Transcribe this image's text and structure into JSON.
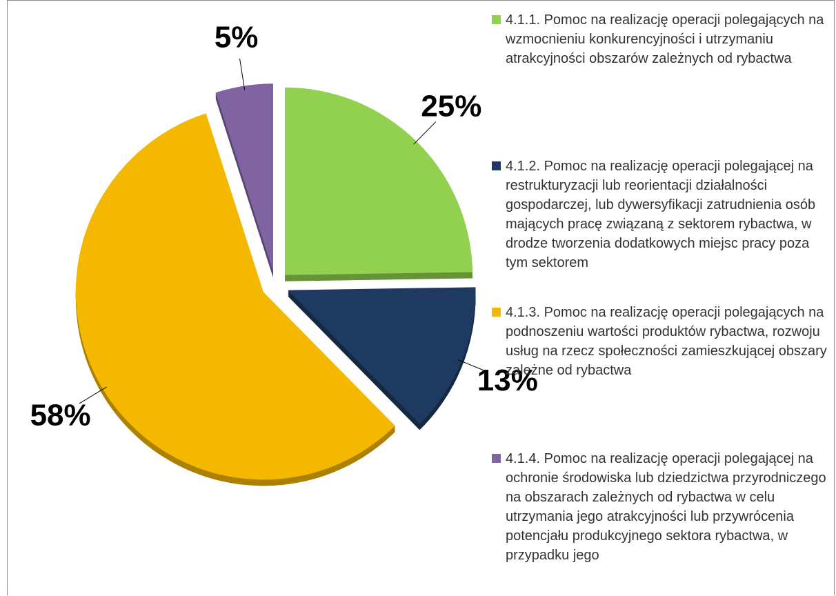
{
  "chart_data": {
    "type": "pie",
    "series": [
      {
        "name": "4.1.1. Pomoc na realizację operacji polegających na wzmocnieniu konkurencyjności i utrzymaniu atrakcyjności obszarów zależnych od rybactwa",
        "color": "#92d050",
        "values": [
          25
        ],
        "value_labels": [
          "25%"
        ]
      },
      {
        "name": "4.1.2. Pomoc na realizację operacji polegającej na restrukturyzacji lub reorientacji działalności gospodarczej, lub dywersyfikacji zatrudnienia osób mających pracę związaną z sektorem rybactwa, w drodze tworzenia dodatkowych miejsc pracy poza tym sektorem",
        "color": "#1f3a60",
        "values": [
          13
        ],
        "value_labels": [
          "13%"
        ]
      },
      {
        "name": "4.1.3. Pomoc na realizację operacji polegających na podnoszeniu wartości produktów rybactwa, rozwoju usług na rzecz społeczności zamieszkującej obszary zależne od rybactwa",
        "color": "#f5b800",
        "values": [
          58
        ],
        "value_labels": [
          "58%"
        ]
      },
      {
        "name": "4.1.4. Pomoc na realizację operacji polegającej na ochronie środowiska lub dziedzictwa przyrodniczego na obszarach zależnych od rybactwa w celu utrzymania jego atrakcyjności lub przywrócenia potencjału produkcyjnego sektora rybactwa, w przypadku jego",
        "color": "#8064a2",
        "values": [
          5
        ],
        "value_labels": [
          "5%"
        ]
      }
    ],
    "legend": "right"
  }
}
